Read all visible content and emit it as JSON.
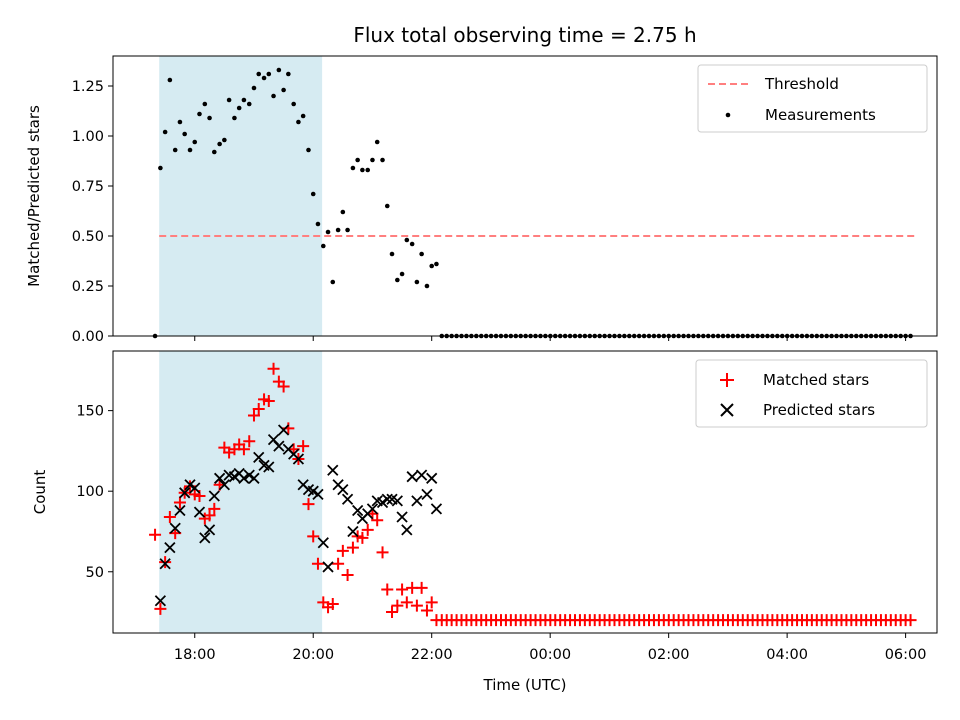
{
  "title": "Flux total observing time = 2.75 h",
  "top_panel": {
    "ylabel": "Matched/Predicted stars",
    "yticks": [
      "0.00",
      "0.25",
      "0.50",
      "0.75",
      "1.00",
      "1.25"
    ],
    "legend": {
      "threshold": "Threshold",
      "measurements": "Measurements"
    }
  },
  "bottom_panel": {
    "ylabel": "Count",
    "yticks": [
      "50",
      "100",
      "150"
    ],
    "legend": {
      "matched": "Matched stars",
      "predicted": "Predicted stars"
    }
  },
  "xlabel": "Time (UTC)",
  "xticks": [
    "18:00",
    "20:00",
    "22:00",
    "00:00",
    "02:00",
    "04:00",
    "06:00"
  ],
  "colors": {
    "threshold": "#ff7f7f",
    "shade": "#add8e6",
    "matched": "#ff0000",
    "predicted": "#000000",
    "measurements": "#000000"
  },
  "chart_data": [
    {
      "type": "scatter",
      "title": "Flux total observing time = 2.75 h",
      "ylabel": "Matched/Predicted stars",
      "xlabel": "",
      "x_unit": "hours (UTC, continuing past midnight)",
      "xlim": [
        16.62,
        30.53
      ],
      "ylim": [
        0.0,
        1.4
      ],
      "shaded_interval": [
        17.4,
        20.15
      ],
      "threshold": {
        "name": "Threshold",
        "value": 0.5,
        "x_range": [
          17.4,
          30.15
        ],
        "style": "dashed"
      },
      "legend_position": "top-right",
      "series": [
        {
          "name": "Measurements",
          "x": [
            17.33,
            17.42,
            17.5,
            17.58,
            17.67,
            17.75,
            17.83,
            17.92,
            18.0,
            18.08,
            18.17,
            18.25,
            18.33,
            18.42,
            18.5,
            18.58,
            18.67,
            18.75,
            18.83,
            18.92,
            19.0,
            19.08,
            19.17,
            19.25,
            19.33,
            19.42,
            19.5,
            19.58,
            19.67,
            19.75,
            19.83,
            19.92,
            20.0,
            20.08,
            20.17,
            20.25,
            20.33,
            20.42,
            20.5,
            20.58,
            20.67,
            20.75,
            20.83,
            20.92,
            21.0,
            21.08,
            21.17,
            21.25,
            21.33,
            21.42,
            21.5,
            21.58,
            21.67,
            21.75,
            21.83,
            21.92,
            22.0,
            22.08,
            22.17
          ],
          "y": [
            0.0,
            0.84,
            1.02,
            1.28,
            0.93,
            1.07,
            1.01,
            0.93,
            0.97,
            1.11,
            1.16,
            1.09,
            0.92,
            0.96,
            0.98,
            1.18,
            1.09,
            1.14,
            1.18,
            1.16,
            1.24,
            1.31,
            1.29,
            1.31,
            1.2,
            1.33,
            1.23,
            1.31,
            1.16,
            1.07,
            1.1,
            0.93,
            0.71,
            0.56,
            0.45,
            0.52,
            0.27,
            0.53,
            0.62,
            0.53,
            0.84,
            0.88,
            0.83,
            0.83,
            0.88,
            0.97,
            0.88,
            0.65,
            0.41,
            0.28,
            0.31,
            0.48,
            0.46,
            0.27,
            0.41,
            0.25,
            0.35,
            0.36,
            0.0
          ],
          "tail": {
            "x_start": 22.17,
            "x_end": 30.15,
            "step": 0.0833,
            "y": 0.0
          }
        }
      ]
    },
    {
      "type": "scatter",
      "title": "",
      "ylabel": "Count",
      "xlabel": "Time (UTC)",
      "xticks": [
        "18:00",
        "20:00",
        "22:00",
        "00:00",
        "02:00",
        "04:00",
        "06:00"
      ],
      "xlim": [
        16.62,
        30.53
      ],
      "ylim": [
        12,
        187
      ],
      "shaded_interval": [
        17.4,
        20.15
      ],
      "legend_position": "top-right",
      "series": [
        {
          "name": "Matched stars",
          "marker": "+",
          "x": [
            17.33,
            17.42,
            17.5,
            17.58,
            17.67,
            17.75,
            17.83,
            17.92,
            18.0,
            18.08,
            18.17,
            18.25,
            18.33,
            18.42,
            18.5,
            18.58,
            18.67,
            18.75,
            18.83,
            18.92,
            19.0,
            19.08,
            19.17,
            19.25,
            19.33,
            19.42,
            19.5,
            19.58,
            19.67,
            19.75,
            19.83,
            19.92,
            20.0,
            20.08,
            20.17,
            20.25,
            20.33,
            20.42,
            20.5,
            20.58,
            20.67,
            20.75,
            20.83,
            20.92,
            21.0,
            21.08,
            21.17,
            21.25,
            21.33,
            21.42,
            21.5,
            21.58,
            21.67,
            21.75,
            21.83,
            21.92,
            22.0,
            22.08,
            22.17
          ],
          "y": [
            73,
            27,
            56,
            84,
            74,
            93,
            99,
            103,
            98,
            97,
            83,
            85,
            89,
            104,
            127,
            124,
            126,
            129,
            126,
            131,
            147,
            151,
            157,
            156,
            176,
            168,
            165,
            139,
            126,
            120,
            128,
            92,
            72,
            55,
            31,
            28,
            30,
            55,
            63,
            48,
            65,
            72,
            71,
            76,
            86,
            82,
            62,
            39,
            25,
            29,
            39,
            31,
            40,
            29,
            40,
            26,
            31,
            20,
            20
          ],
          "tail": {
            "x_start": 22.17,
            "x_end": 30.15,
            "step": 0.0833,
            "y": 20
          }
        },
        {
          "name": "Predicted stars",
          "marker": "x",
          "x": [
            17.42,
            17.5,
            17.58,
            17.67,
            17.75,
            17.83,
            17.92,
            18.0,
            18.08,
            18.17,
            18.25,
            18.33,
            18.42,
            18.5,
            18.58,
            18.67,
            18.75,
            18.83,
            18.92,
            19.0,
            19.08,
            19.17,
            19.25,
            19.33,
            19.42,
            19.5,
            19.58,
            19.67,
            19.75,
            19.83,
            19.92,
            20.0,
            20.08,
            20.17,
            20.25,
            20.33,
            20.42,
            20.5,
            20.58,
            20.67,
            20.75,
            20.83,
            20.92,
            21.0,
            21.08,
            21.17,
            21.25,
            21.33,
            21.42,
            21.5,
            21.58,
            21.67,
            21.75,
            21.83,
            21.92,
            22.0,
            22.08
          ],
          "y": [
            32,
            55,
            65,
            77,
            88,
            99,
            104,
            102,
            87,
            71,
            76,
            97,
            108,
            104,
            110,
            109,
            111,
            108,
            110,
            108,
            121,
            116,
            115,
            132,
            128,
            138,
            126,
            123,
            120,
            104,
            101,
            100,
            98,
            68,
            53,
            113,
            104,
            101,
            95,
            75,
            88,
            83,
            86,
            89,
            94,
            93,
            95,
            95,
            94,
            84,
            76,
            109,
            94,
            110,
            98,
            108,
            89
          ]
        }
      ]
    }
  ]
}
